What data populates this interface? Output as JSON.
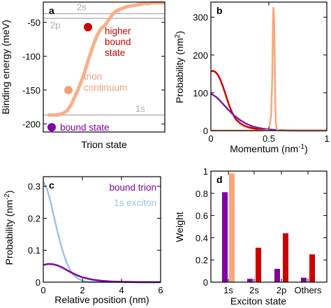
{
  "chart_data": [
    {
      "panel": "a",
      "type": "line",
      "xlabel": "Trion state",
      "ylabel": "Binding energy (meV)",
      "ylim": [
        -212,
        -20
      ],
      "yticks": [
        -200,
        -150,
        -100,
        -50
      ],
      "grid": false,
      "reference_lines": [
        {
          "label": "2s",
          "value": -37
        },
        {
          "label": "2p",
          "value": -44
        },
        {
          "label": "1s",
          "value": -187
        }
      ],
      "series": [
        {
          "name": "trion continuum",
          "color": "#f8b08a",
          "values": [
            -187,
            -187,
            -187,
            -186,
            -184,
            -180,
            -172,
            -160,
            -148,
            -134,
            -118,
            -100,
            -84,
            -70,
            -60,
            -55,
            -48,
            -40,
            -34,
            -31,
            -29,
            -27,
            -26,
            -25,
            -24,
            -23,
            -22,
            -22,
            -21,
            -21,
            -21,
            -21
          ]
        }
      ],
      "markers": [
        {
          "label": "bound state",
          "value": -205,
          "color": "#8000a0"
        },
        {
          "label": "trion continuum",
          "value": -150,
          "color": "#f4a07a"
        },
        {
          "label": "higher bound state",
          "value": -57,
          "color": "#cc0000"
        }
      ],
      "annotations": {
        "higher": [
          "higher",
          "bound",
          "state"
        ],
        "continuum": [
          "trion",
          "continuum"
        ],
        "bound": "bound state"
      }
    },
    {
      "panel": "b",
      "type": "line",
      "xlabel": "Momentum (nm",
      "xlabel_sup": "-1",
      "xlabel_tail": ")",
      "ylabel": "Probability (nm",
      "ylabel_sup": "2",
      "ylabel_tail": ")",
      "xlim": [
        0,
        1
      ],
      "ylim": [
        0,
        340
      ],
      "xticks": [
        0,
        0.5,
        1
      ],
      "yticks": [
        0,
        100,
        200,
        300
      ],
      "series": [
        {
          "color": "#cc0000",
          "x": [
            0,
            0.02,
            0.04,
            0.06,
            0.08,
            0.1,
            0.12,
            0.14,
            0.16,
            0.18,
            0.2,
            0.22,
            0.25,
            0.28,
            0.32,
            0.36,
            0.4,
            0.45,
            0.5,
            0.6,
            0.7,
            0.8,
            0.9,
            1.0
          ],
          "y": [
            157,
            158,
            155,
            148,
            136,
            120,
            102,
            83,
            65,
            50,
            38,
            28,
            20,
            14,
            9,
            6,
            4,
            3,
            2,
            1,
            0,
            0,
            0,
            0
          ]
        },
        {
          "color": "#7a1fa2",
          "x": [
            0,
            0.05,
            0.1,
            0.15,
            0.2,
            0.25,
            0.3,
            0.35,
            0.4,
            0.45,
            0.5,
            0.6,
            0.7,
            0.8,
            0.9,
            1.0
          ],
          "y": [
            98,
            88,
            72,
            55,
            40,
            28,
            19,
            12,
            8,
            5,
            3,
            1,
            0,
            0,
            0,
            0
          ]
        },
        {
          "color": "#f8a67a",
          "x": [
            0,
            0.45,
            0.5,
            0.52,
            0.53,
            0.535,
            0.54,
            0.545,
            0.55,
            0.555,
            0.56,
            0.57,
            0.6,
            1.0
          ],
          "y": [
            0,
            0,
            2,
            40,
            150,
            280,
            325,
            300,
            200,
            80,
            20,
            3,
            0,
            0
          ]
        }
      ]
    },
    {
      "panel": "c",
      "type": "line",
      "xlabel": "Relative position (nm)",
      "ylabel": "Probability (nm",
      "ylabel_sup": "-2",
      "ylabel_tail": ")",
      "xlim": [
        0,
        6
      ],
      "ylim": [
        0,
        0.33
      ],
      "xticks": [
        0,
        2,
        4,
        6
      ],
      "yticks": [
        0,
        0.1,
        0.2,
        0.3
      ],
      "legend_position": "top-right",
      "series": [
        {
          "name": "1s exciton",
          "color": "#9dc3e6",
          "x": [
            0,
            0.2,
            0.4,
            0.6,
            0.8,
            1.0,
            1.2,
            1.4,
            1.6,
            1.8,
            2.0,
            2.2,
            2.4,
            3.0,
            6.0
          ],
          "y": [
            0.315,
            0.29,
            0.245,
            0.19,
            0.14,
            0.095,
            0.06,
            0.035,
            0.02,
            0.01,
            0.005,
            0.002,
            0.001,
            0,
            0
          ]
        },
        {
          "name": "bound trion",
          "color": "#8000a0",
          "x": [
            0,
            0.25,
            0.5,
            0.75,
            1.0,
            1.25,
            1.5,
            1.75,
            2.0,
            2.5,
            3.0,
            3.5,
            4.0,
            5.0,
            6.0
          ],
          "y": [
            0.054,
            0.057,
            0.056,
            0.052,
            0.045,
            0.036,
            0.028,
            0.021,
            0.015,
            0.008,
            0.004,
            0.002,
            0.001,
            0,
            0
          ]
        }
      ]
    },
    {
      "panel": "d",
      "type": "bar",
      "xlabel": "Exciton state",
      "ylabel": "Weight",
      "ylim": [
        0,
        1
      ],
      "yticks": [
        0,
        0.2,
        0.4,
        0.6,
        0.8,
        1
      ],
      "categories": [
        "1s",
        "2s",
        "2p",
        "Others"
      ],
      "series": [
        {
          "color": "#8000a0",
          "values": [
            0.81,
            0.03,
            0.12,
            0.04
          ]
        },
        {
          "color": "#cc0000",
          "values": [
            0.0,
            0.31,
            0.44,
            0.25
          ]
        },
        {
          "color": "#f8a67a",
          "values": [
            0.98,
            0,
            0,
            0
          ]
        }
      ]
    }
  ]
}
